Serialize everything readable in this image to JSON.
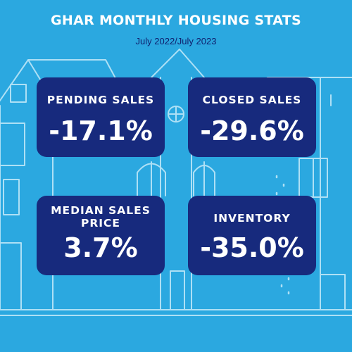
{
  "header": {
    "title": "GHAR MONTHLY HOUSING STATS",
    "subtitle": "July 2022/July 2023"
  },
  "stats": [
    {
      "label": "PENDING SALES",
      "value": "-17.1%"
    },
    {
      "label": "CLOSED SALES",
      "value": "-29.6%"
    },
    {
      "label": "MEDIAN SALES PRICE",
      "value": "3.7%"
    },
    {
      "label": "INVENTORY",
      "value": "-35.0%"
    }
  ],
  "colors": {
    "background": "#2ba8e0",
    "card": "#172a7d",
    "subtitle": "#10206e",
    "text": "#ffffff"
  },
  "icons": [
    "house-line-illustration"
  ]
}
